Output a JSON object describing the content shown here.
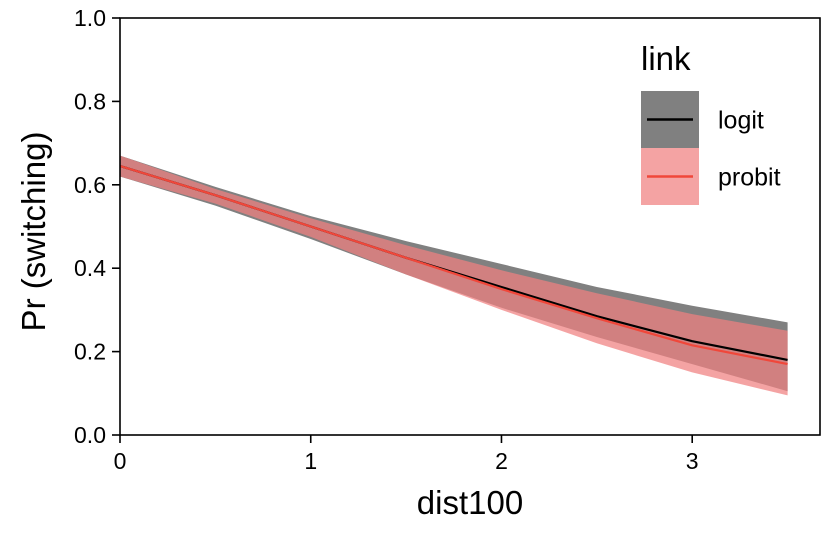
{
  "chart_data": {
    "type": "line",
    "title": "",
    "xlabel": "dist100",
    "ylabel": "Pr (switching)",
    "xlim": [
      0,
      3.67
    ],
    "ylim": [
      0,
      1.0
    ],
    "xticks": [
      0,
      1,
      2,
      3
    ],
    "xtick_labels": [
      "0",
      "1",
      "2",
      "3"
    ],
    "yticks": [
      0.0,
      0.2,
      0.4,
      0.6,
      0.8,
      1.0
    ],
    "ytick_labels": [
      "0.0",
      "0.2",
      "0.4",
      "0.6",
      "0.8",
      "1.0"
    ],
    "grid": false,
    "legend": {
      "title": "link",
      "placement": "top-right"
    },
    "x": [
      0,
      0.5,
      1.0,
      1.5,
      2.0,
      2.5,
      3.0,
      3.5
    ],
    "series": [
      {
        "name": "logit",
        "color": "#000000",
        "band_color": "#808080",
        "band_opacity": 1,
        "values": [
          0.645,
          0.575,
          0.5,
          0.425,
          0.355,
          0.285,
          0.225,
          0.18
        ],
        "lower": [
          0.62,
          0.55,
          0.47,
          0.385,
          0.305,
          0.235,
          0.17,
          0.105
        ],
        "upper": [
          0.67,
          0.595,
          0.525,
          0.465,
          0.41,
          0.355,
          0.31,
          0.27
        ]
      },
      {
        "name": "probit",
        "color": "#f0473a",
        "band_color": "#f08080",
        "band_opacity": 0.72,
        "values": [
          0.645,
          0.575,
          0.5,
          0.425,
          0.35,
          0.28,
          0.215,
          0.17
        ],
        "lower": [
          0.62,
          0.555,
          0.475,
          0.385,
          0.3,
          0.22,
          0.15,
          0.095
        ],
        "upper": [
          0.67,
          0.59,
          0.52,
          0.455,
          0.395,
          0.34,
          0.29,
          0.25
        ]
      }
    ]
  }
}
